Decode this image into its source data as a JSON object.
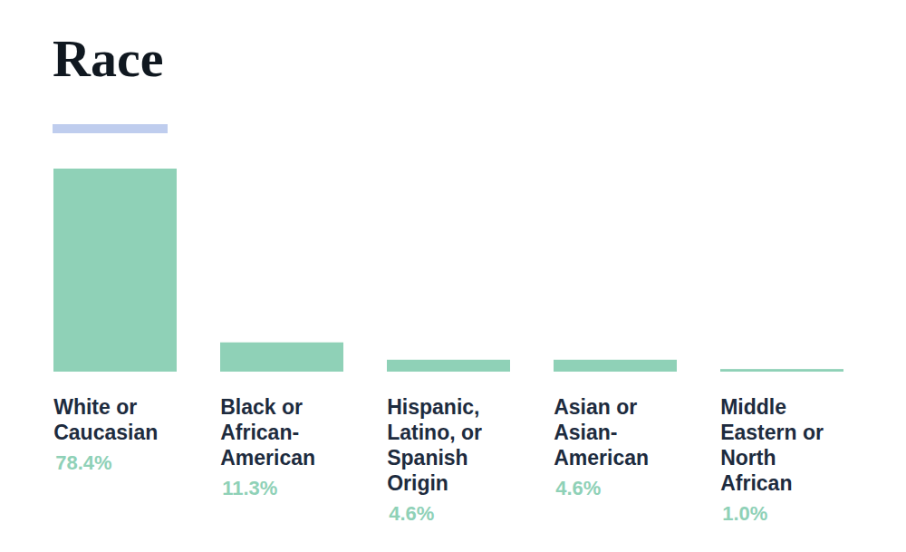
{
  "chart_data": {
    "type": "bar",
    "title": "Race",
    "categories": [
      "White or Caucasian",
      "Black or African-American",
      "Hispanic, Latino, or Spanish Origin",
      "Asian or Asian-American",
      "Middle Eastern or North African"
    ],
    "values": [
      78.4,
      11.3,
      4.6,
      4.6,
      1.0
    ],
    "value_labels": [
      "78.4%",
      "11.3%",
      "4.6%",
      "4.6%",
      "1.0%"
    ],
    "color": "#8fd1b7",
    "ylim": [
      0,
      78.4
    ],
    "yticks": [],
    "grid": false,
    "data_labels": true,
    "tick_labels": "x"
  }
}
